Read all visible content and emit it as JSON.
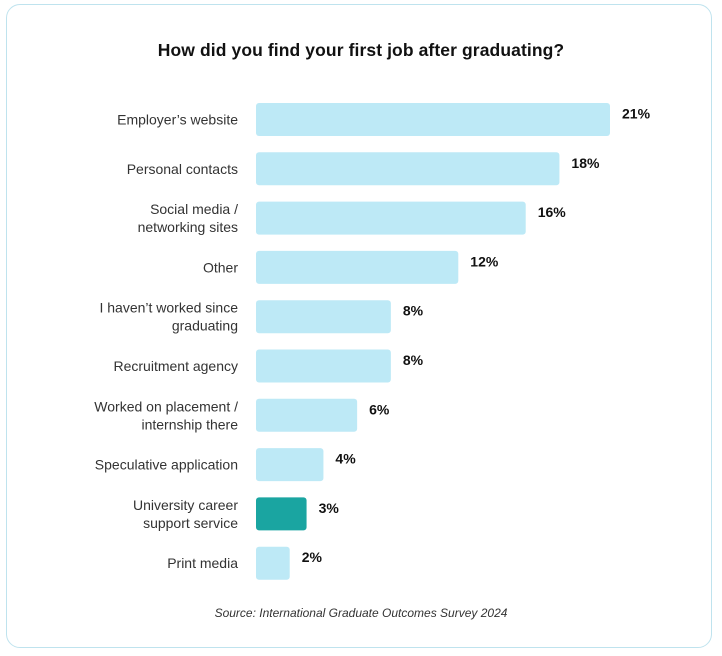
{
  "chart_data": {
    "type": "bar",
    "orientation": "horizontal",
    "title": "How did you find your first job after graduating?",
    "categories": [
      [
        "Employer’s website"
      ],
      [
        "Personal contacts"
      ],
      [
        "Social media /",
        "networking sites"
      ],
      [
        "Other"
      ],
      [
        "I haven’t worked since",
        "graduating"
      ],
      [
        "Recruitment agency"
      ],
      [
        "Worked on placement /",
        "internship there"
      ],
      [
        "Speculative application"
      ],
      [
        "University career",
        "support service"
      ],
      [
        "Print media"
      ]
    ],
    "values": [
      21,
      18,
      16,
      12,
      8,
      8,
      6,
      4,
      3,
      2
    ],
    "value_labels": [
      "21%",
      "18%",
      "16%",
      "12%",
      "8%",
      "8%",
      "6%",
      "4%",
      "3%",
      "2%"
    ],
    "unit": "%",
    "xlim": [
      0,
      21
    ],
    "highlight_index": 8,
    "colors": {
      "bar": "#bde9f6",
      "highlight": "#1aa5a1"
    },
    "grid": false,
    "legend": "none"
  },
  "source_note": "Source: International Graduate Outcomes Survey 2024"
}
